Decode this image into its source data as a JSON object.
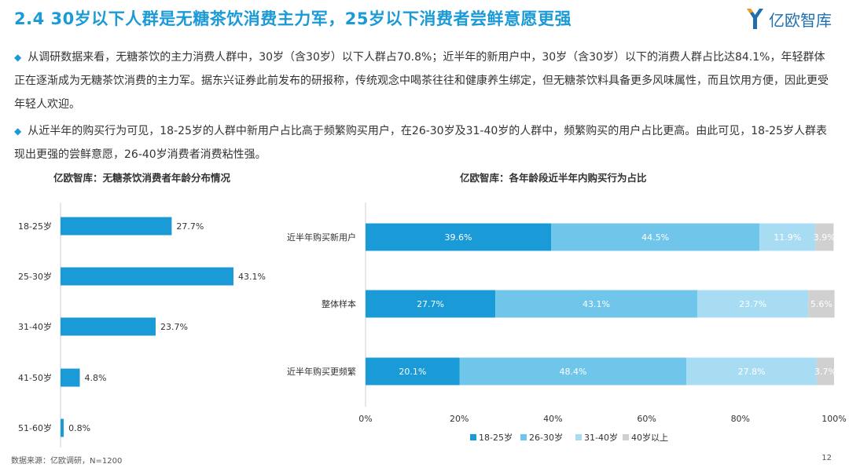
{
  "header": {
    "title": "2.4 30岁以下人群是无糖茶饮消费主力军，25岁以下消费者尝鲜意愿更强",
    "logo_text": "亿欧智库"
  },
  "bullets": [
    "从调研数据来看，无糖茶饮的主力消费人群中，30岁（含30岁）以下人群占70.8%；近半年的新用户中，30岁（含30岁）以下的消费人群占比达84.1%，年轻群体正在逐渐成为无糖茶饮消费的主力军。据东兴证券此前发布的研报称，传统观念中喝茶往往和健康养生绑定，但无糖茶饮料具备更多风味属性，而且饮用方便，因此更受年轻人欢迎。",
    "从近半年的购买行为可见，18-25岁的人群中新用户占比高于频繁购买用户，在26-30岁及31-40岁的人群中，频繁购买的用户占比更高。由此可见，18-25岁人群表现出更强的尝鲜意愿，26-40岁消费者消费粘性强。"
  ],
  "chart_data": [
    {
      "type": "bar",
      "orientation": "horizontal",
      "title": "亿欧智库：无糖茶饮消费者年龄分布情况",
      "categories": [
        "18-25岁",
        "25-30岁",
        "31-40岁",
        "41-50岁",
        "51-60岁"
      ],
      "values": [
        27.7,
        43.1,
        23.7,
        4.8,
        0.8
      ],
      "value_labels": [
        "27.7%",
        "43.1%",
        "23.7%",
        "4.8%",
        "0.8%"
      ],
      "color": "#1a9ad6"
    },
    {
      "type": "bar",
      "orientation": "horizontal",
      "stacked": true,
      "title": "亿欧智库：各年龄段近半年内购买行为占比",
      "categories": [
        "近半年购买新用户",
        "整体样本",
        "近半年购买更频繁"
      ],
      "series": [
        {
          "name": "18-25岁",
          "values": [
            39.6,
            27.7,
            20.1
          ],
          "labels": [
            "39.6%",
            "27.7%",
            "20.1%"
          ],
          "color": "#1a9ad6"
        },
        {
          "name": "26-30岁",
          "values": [
            44.5,
            43.1,
            48.4
          ],
          "labels": [
            "44.5%",
            "43.1%",
            "48.4%"
          ],
          "color": "#6fc6ea"
        },
        {
          "name": "31-40岁",
          "values": [
            11.9,
            23.7,
            27.8
          ],
          "labels": [
            "11.9%",
            "23.7%",
            "27.8%"
          ],
          "color": "#a8dcf3"
        },
        {
          "name": "40岁以上",
          "values": [
            3.9,
            5.6,
            3.7
          ],
          "labels": [
            "3.9%",
            "5.6%",
            "3.7%"
          ],
          "color": "#d0d0d0"
        }
      ],
      "xticks": [
        "0%",
        "20%",
        "40%",
        "60%",
        "80%",
        "100%"
      ],
      "xlim": [
        0,
        100
      ],
      "legend_position": "bottom"
    }
  ],
  "footer": {
    "source": "数据来源：亿欧调研，N=1200",
    "page": "12"
  }
}
